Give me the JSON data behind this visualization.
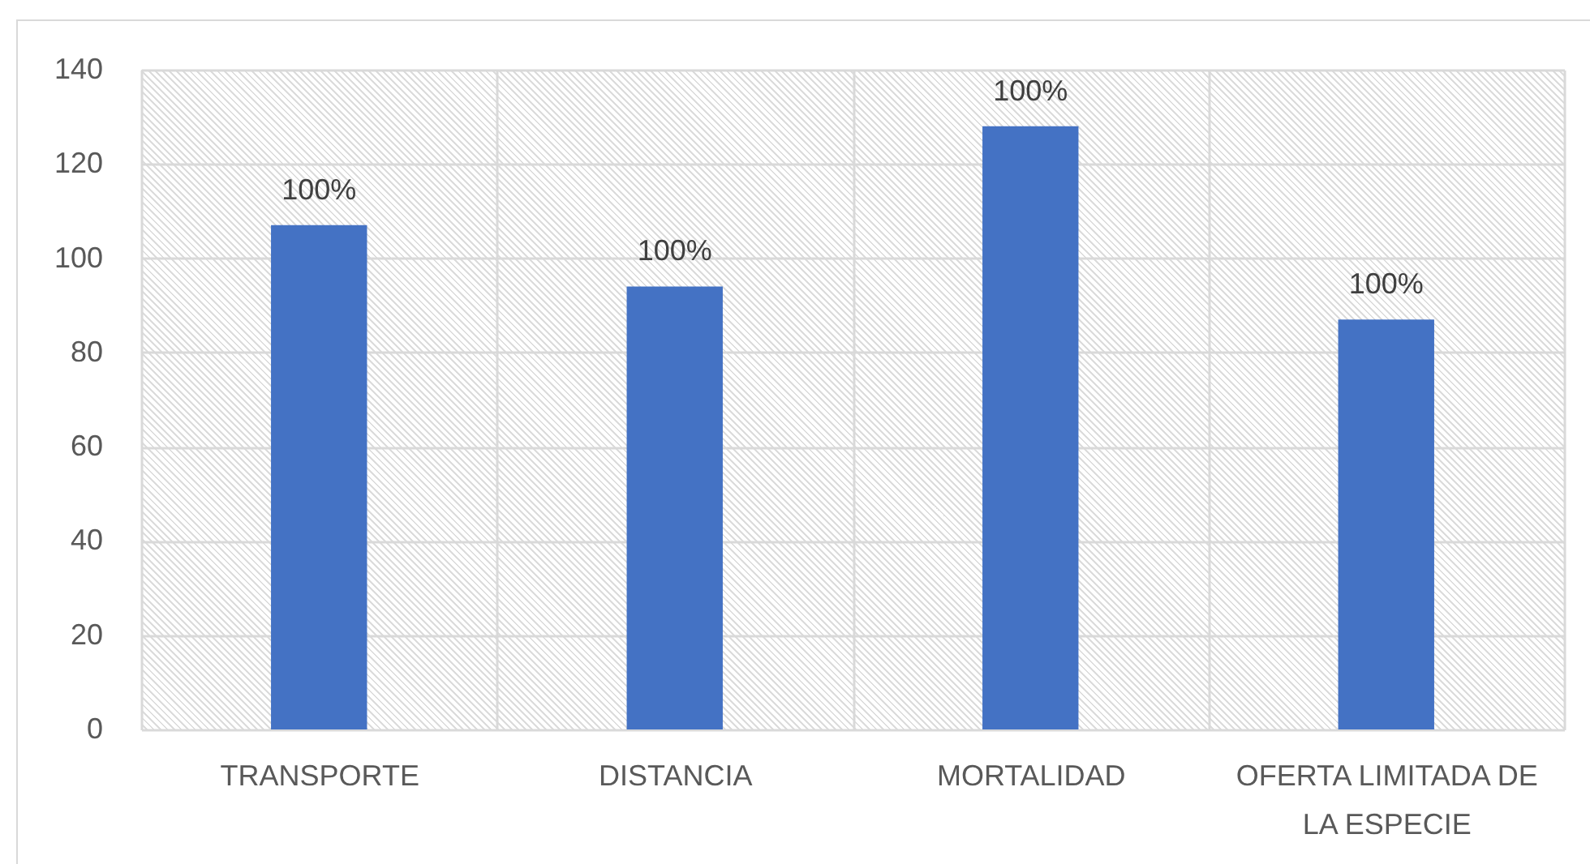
{
  "chart_data": {
    "type": "bar",
    "categories": [
      "TRANSPORTE",
      "DISTANCIA",
      "MORTALIDAD",
      "OFERTA LIMITADA DE LA ESPECIE"
    ],
    "values": [
      107,
      94,
      128,
      87
    ],
    "color": "#4472c4",
    "annotations": [
      {
        "text": "100%",
        "x": "TRANSPORTE",
        "y": 107
      },
      {
        "text": "100%",
        "x": "DISTANCIA",
        "y": 94
      },
      {
        "text": "100%",
        "x": "MORTALIDAD",
        "y": 128
      },
      {
        "text": "100%",
        "x": "OFERTA LIMITADA DE LA ESPECIE",
        "y": 87
      }
    ],
    "ylim": [
      0,
      140
    ],
    "yticks": [
      0,
      20,
      40,
      60,
      80,
      100,
      120,
      140
    ],
    "grid": true
  }
}
